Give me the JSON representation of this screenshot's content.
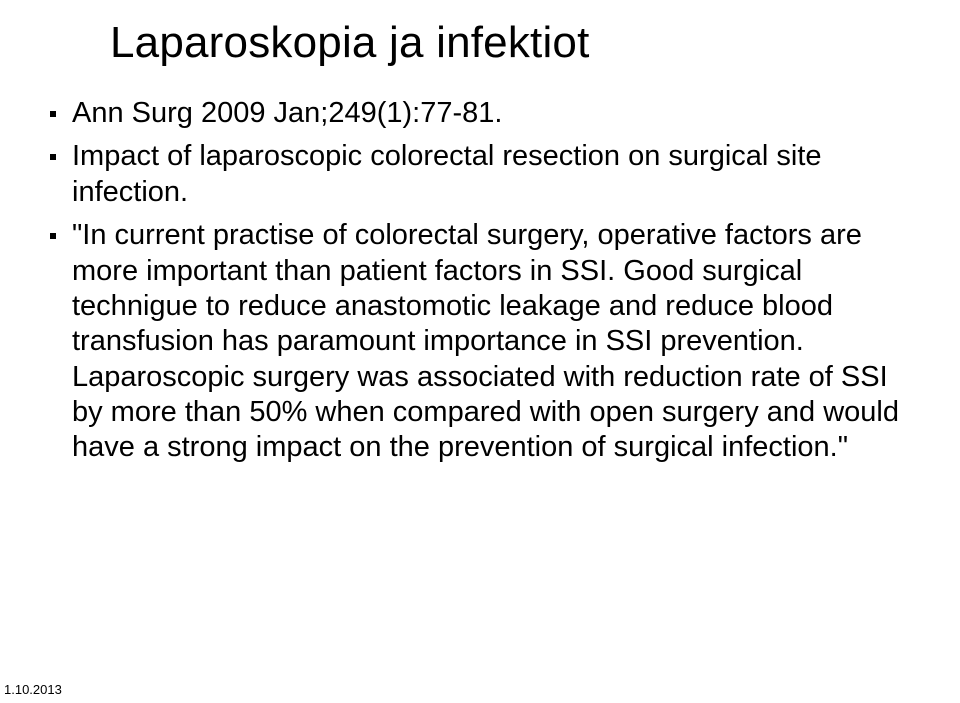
{
  "slide": {
    "title": "Laparoskopia ja infektiot",
    "bullets": [
      "Ann Surg 2009 Jan;249(1):77-81.",
      "Impact of laparoscopic colorectal resection on surgical site infection.",
      "\"In current practise of colorectal surgery, operative factors are more important than patient factors in SSI. Good surgical technigue to reduce anastomotic leakage and reduce blood transfusion has paramount importance in SSI prevention. Laparoscopic surgery was associated with reduction rate of SSI by more than 50% when compared with open surgery and would have a strong impact on the prevention of surgical infection.\""
    ],
    "footer_date": "1.10.2013"
  },
  "style": {
    "background_color": "#ffffff",
    "text_color": "#000000",
    "title_fontsize": 44,
    "body_fontsize": 29,
    "footer_fontsize": 13,
    "font_family": "Arial, Helvetica, sans-serif",
    "bullet_shape": "square",
    "bullet_color": "#000000",
    "slide_width": 960,
    "slide_height": 703
  }
}
